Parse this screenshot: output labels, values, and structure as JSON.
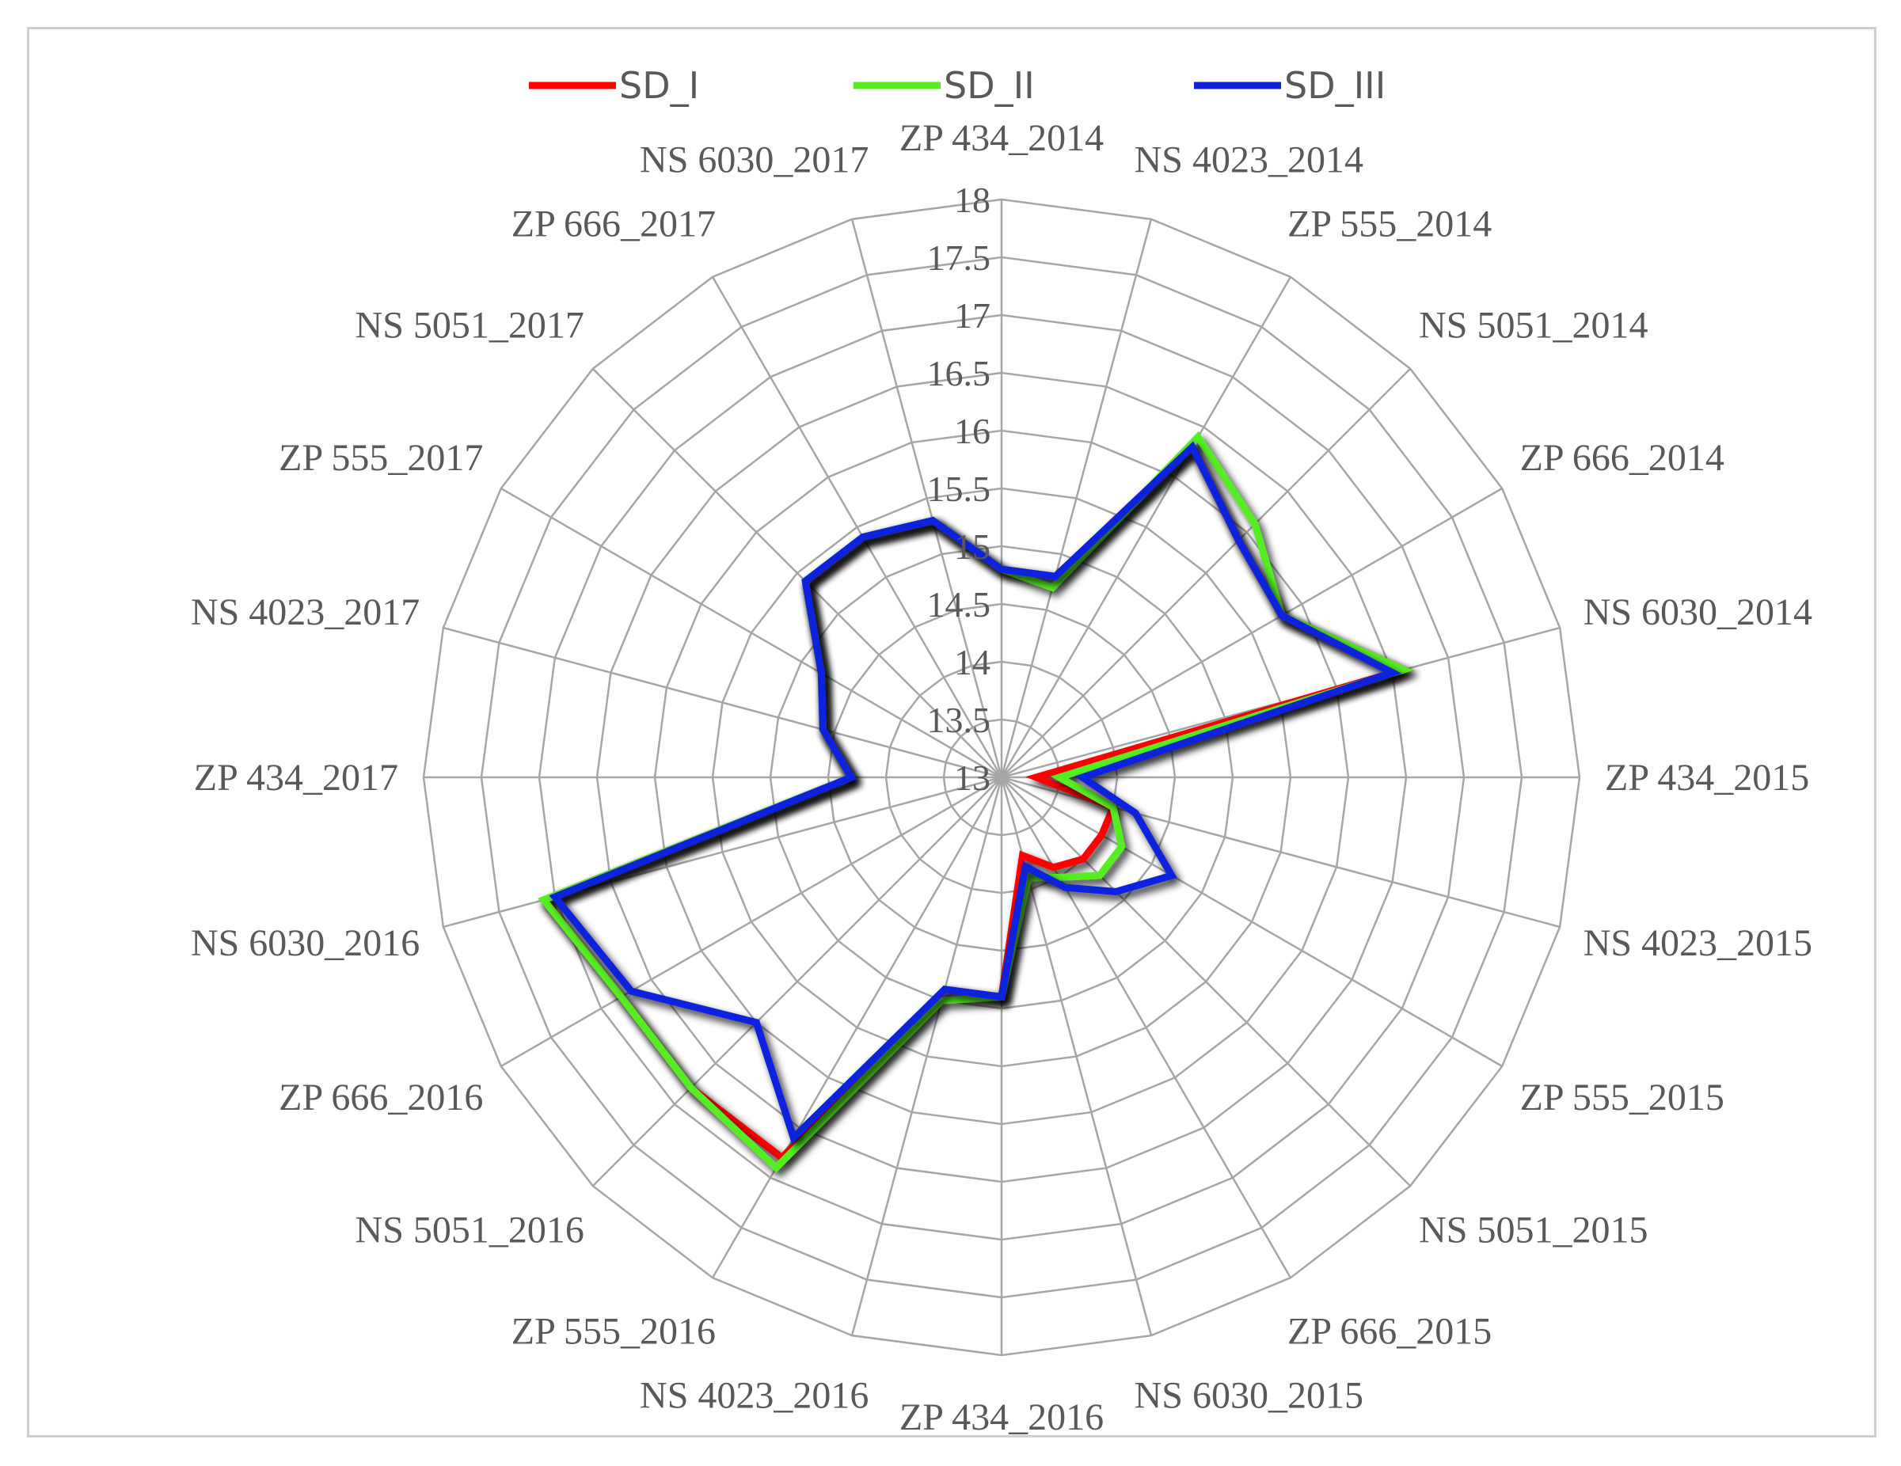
{
  "chart_data": {
    "type": "radar",
    "categories": [
      "ZP 434_2014",
      "NS 4023_2014",
      "ZP 555_2014",
      "NS 5051_2014",
      "ZP 666_2014",
      "NS 6030_2014",
      "ZP 434_2015",
      "NS 4023_2015",
      "ZP 555_2015",
      "NS 5051_2015",
      "ZP 666_2015",
      "NS 6030_2015",
      "ZP 434_2016",
      "NS 4023_2016",
      "ZP 555_2016",
      "NS 5051_2016",
      "ZP 666_2016",
      "NS 6030_2016",
      "ZP 434_2017",
      "NS 4023_2017",
      "ZP 555_2017",
      "NS 5051_2017",
      "ZP 666_2017",
      "NS 6030_2017"
    ],
    "ticks": [
      "13",
      "13.5",
      "14",
      "14.5",
      "15",
      "15.5",
      "16",
      "16.5",
      "17",
      "17.5",
      "18"
    ],
    "rmin": 13,
    "rmax": 18,
    "grid": true,
    "legend_position": "top",
    "series": [
      {
        "name": "SD_I",
        "color": "#ff0000",
        "values": [
          14.8,
          14.8,
          16.3,
          15.9,
          15.8,
          16.6,
          13.3,
          14.0,
          14.0,
          14.0,
          13.9,
          13.7,
          14.9,
          14.9,
          16.8,
          16.8,
          16.8,
          17.1,
          14.3,
          14.6,
          14.8,
          15.4,
          15.4,
          15.3
        ]
      },
      {
        "name": "SD_II",
        "color": "#55ee22",
        "values": [
          14.8,
          14.7,
          16.4,
          16.1,
          15.8,
          16.6,
          13.5,
          14.0,
          14.2,
          14.2,
          14.0,
          13.9,
          14.9,
          15.0,
          16.9,
          16.8,
          16.8,
          17.1,
          14.3,
          14.6,
          14.8,
          15.4,
          15.4,
          15.3
        ]
      },
      {
        "name": "SD_III",
        "color": "#1122dd",
        "values": [
          14.8,
          14.8,
          16.3,
          15.9,
          15.8,
          16.5,
          13.7,
          14.2,
          14.7,
          14.4,
          14.1,
          13.8,
          14.9,
          14.9,
          16.6,
          16.0,
          16.7,
          17.0,
          14.3,
          14.6,
          14.8,
          15.4,
          15.4,
          15.3
        ]
      }
    ]
  }
}
